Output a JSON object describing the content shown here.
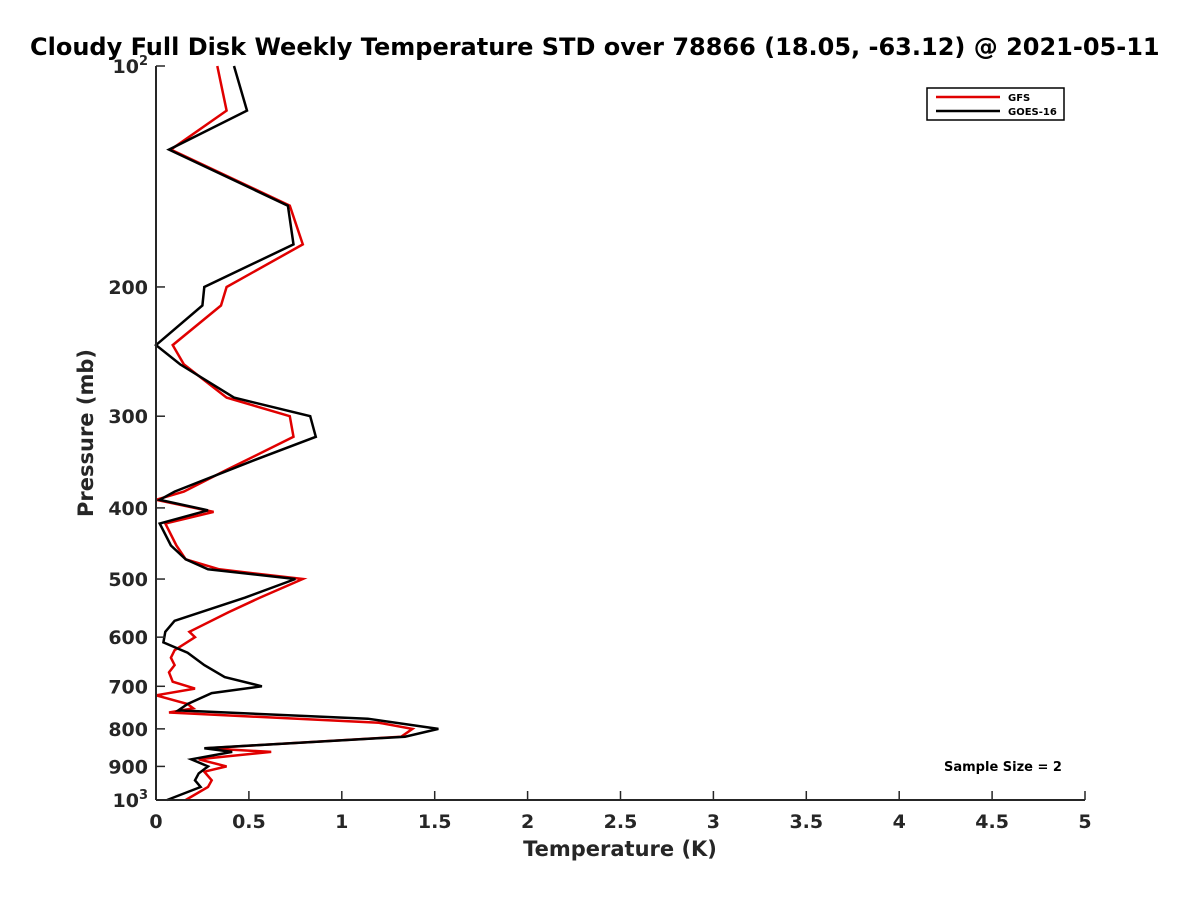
{
  "chart_data": {
    "type": "line",
    "title": "Cloudy Full Disk Weekly Temperature STD over 78866 (18.05, -63.12) @ 2021-05-11",
    "xlabel": "Temperature (K)",
    "ylabel": "Pressure (mb)",
    "xlim": [
      0,
      5
    ],
    "ylim": [
      1000,
      100
    ],
    "y_scale": "log",
    "y_reversed": true,
    "x_ticks": [
      "0",
      "0.5",
      "1",
      "1.5",
      "2",
      "2.5",
      "3",
      "3.5",
      "4",
      "4.5",
      "5"
    ],
    "y_ticks": [
      {
        "value": 100,
        "base": "10",
        "exp": "2"
      },
      {
        "value": 200,
        "label": "200"
      },
      {
        "value": 300,
        "label": "300"
      },
      {
        "value": 400,
        "label": "400"
      },
      {
        "value": 500,
        "label": "500"
      },
      {
        "value": 600,
        "label": "600"
      },
      {
        "value": 700,
        "label": "700"
      },
      {
        "value": 800,
        "label": "800"
      },
      {
        "value": 900,
        "label": "900"
      },
      {
        "value": 1000,
        "base": "10",
        "exp": "3"
      }
    ],
    "legend": {
      "placement": "top-right"
    },
    "annotation": "Sample Size = 2",
    "grid": false,
    "series": [
      {
        "name": "GFS",
        "color": "#e00000",
        "points": [
          [
            0.33,
            100
          ],
          [
            0.38,
            115
          ],
          [
            0.08,
            130
          ],
          [
            0.72,
            155
          ],
          [
            0.79,
            175
          ],
          [
            0.38,
            200
          ],
          [
            0.35,
            212
          ],
          [
            0.09,
            240
          ],
          [
            0.15,
            255
          ],
          [
            0.38,
            283
          ],
          [
            0.72,
            300
          ],
          [
            0.74,
            320
          ],
          [
            0.38,
            355
          ],
          [
            0.15,
            380
          ],
          [
            0.0,
            390
          ],
          [
            0.31,
            405
          ],
          [
            0.05,
            420
          ],
          [
            0.11,
            450
          ],
          [
            0.16,
            470
          ],
          [
            0.34,
            485
          ],
          [
            0.79,
            500
          ],
          [
            0.56,
            530
          ],
          [
            0.39,
            555
          ],
          [
            0.18,
            590
          ],
          [
            0.21,
            600
          ],
          [
            0.1,
            625
          ],
          [
            0.08,
            640
          ],
          [
            0.1,
            655
          ],
          [
            0.07,
            670
          ],
          [
            0.09,
            690
          ],
          [
            0.21,
            705
          ],
          [
            0.0,
            720
          ],
          [
            0.17,
            740
          ],
          [
            0.2,
            750
          ],
          [
            0.07,
            760
          ],
          [
            1.2,
            785
          ],
          [
            1.38,
            800
          ],
          [
            1.32,
            820
          ],
          [
            0.27,
            850
          ],
          [
            0.62,
            860
          ],
          [
            0.23,
            880
          ],
          [
            0.38,
            900
          ],
          [
            0.26,
            915
          ],
          [
            0.3,
            940
          ],
          [
            0.28,
            960
          ],
          [
            0.16,
            1000
          ]
        ]
      },
      {
        "name": "GOES-16",
        "color": "#000000",
        "points": [
          [
            0.42,
            100
          ],
          [
            0.49,
            115
          ],
          [
            0.07,
            130
          ],
          [
            0.71,
            155
          ],
          [
            0.74,
            175
          ],
          [
            0.26,
            200
          ],
          [
            0.25,
            212
          ],
          [
            0.0,
            240
          ],
          [
            0.13,
            255
          ],
          [
            0.42,
            283
          ],
          [
            0.83,
            300
          ],
          [
            0.86,
            320
          ],
          [
            0.52,
            345
          ],
          [
            0.1,
            380
          ],
          [
            0.02,
            390
          ],
          [
            0.28,
            403
          ],
          [
            0.02,
            420
          ],
          [
            0.08,
            450
          ],
          [
            0.16,
            470
          ],
          [
            0.28,
            485
          ],
          [
            0.75,
            500
          ],
          [
            0.48,
            530
          ],
          [
            0.1,
            570
          ],
          [
            0.05,
            590
          ],
          [
            0.04,
            610
          ],
          [
            0.17,
            630
          ],
          [
            0.26,
            655
          ],
          [
            0.37,
            680
          ],
          [
            0.57,
            700
          ],
          [
            0.3,
            715
          ],
          [
            0.17,
            740
          ],
          [
            0.12,
            755
          ],
          [
            1.14,
            775
          ],
          [
            1.52,
            800
          ],
          [
            1.34,
            820
          ],
          [
            0.26,
            850
          ],
          [
            0.41,
            860
          ],
          [
            0.19,
            880
          ],
          [
            0.28,
            900
          ],
          [
            0.23,
            920
          ],
          [
            0.21,
            940
          ],
          [
            0.24,
            960
          ],
          [
            0.06,
            1000
          ]
        ]
      }
    ]
  }
}
